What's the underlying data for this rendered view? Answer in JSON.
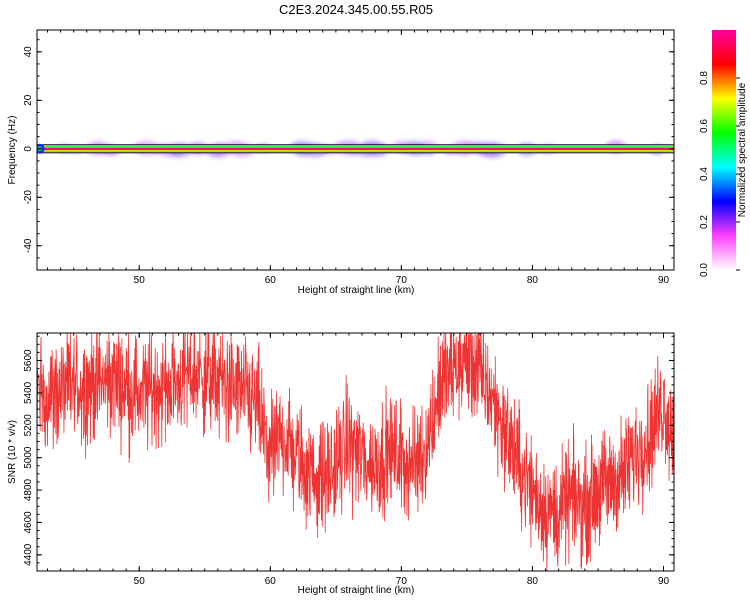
{
  "title": "C2E3.2024.345.00.55.R05",
  "chart_data": [
    {
      "type": "heatmap",
      "xlabel": "Height of straight line (km)",
      "ylabel": "Frequency (Hz)",
      "xlim": [
        42.2,
        90.8
      ],
      "ylim": [
        -50,
        49
      ],
      "xticks": [
        50,
        60,
        70,
        80,
        90
      ],
      "yticks": [
        -40,
        -20,
        0,
        20,
        40
      ],
      "ridge_frequency_hz": 0,
      "colorbar": {
        "label": "Normalized spectral amplitude",
        "ticks": [
          0.0,
          0.2,
          0.4,
          0.6,
          0.8
        ],
        "range": [
          0,
          1
        ],
        "colors": [
          "#ffffff",
          "#ff40ff",
          "#0000ff",
          "#00ffff",
          "#00ff00",
          "#ffff00",
          "#ff0000",
          "#ff00a0"
        ]
      },
      "color": "#000000"
    },
    {
      "type": "line",
      "xlabel": "Height of straight line (km)",
      "ylabel": "SNR (10 * v/v)",
      "xlim": [
        42.2,
        90.8
      ],
      "ylim": [
        4300,
        5770
      ],
      "xticks": [
        50,
        60,
        70,
        80,
        90
      ],
      "yticks": [
        4400,
        4600,
        4800,
        5000,
        5200,
        5400,
        5600
      ],
      "color": "#ee3333",
      "trend": {
        "x": [
          42.2,
          43,
          44,
          46,
          48,
          50,
          52,
          54,
          56,
          57.5,
          59,
          60,
          61,
          62,
          63,
          64,
          65,
          66,
          67,
          68,
          69,
          70,
          71,
          72,
          73,
          74,
          75,
          76,
          77,
          78,
          79,
          80,
          81,
          82,
          83,
          84,
          85,
          86,
          87,
          88,
          89,
          90,
          90.8
        ],
        "y": [
          5400,
          5380,
          5420,
          5450,
          5480,
          5400,
          5440,
          5520,
          5470,
          5420,
          5320,
          5000,
          5150,
          5000,
          4900,
          4870,
          4950,
          5100,
          5000,
          4950,
          5050,
          5000,
          4950,
          5100,
          5450,
          5550,
          5600,
          5520,
          5350,
          5150,
          4950,
          4800,
          4680,
          4650,
          4750,
          4700,
          4800,
          4850,
          4900,
          5050,
          5150,
          5350,
          5100
        ]
      },
      "noise_amplitude": 170
    }
  ]
}
